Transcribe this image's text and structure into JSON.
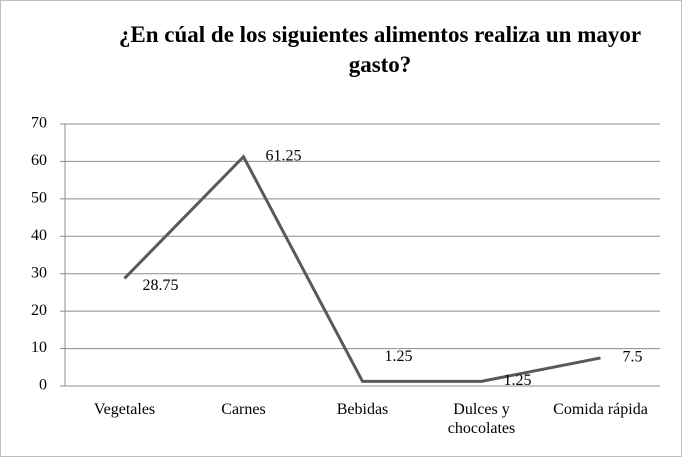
{
  "chart_data": {
    "type": "line",
    "title": "¿En cúal de los siguientes alimentos realiza un mayor gasto?",
    "categories": [
      "Vegetales",
      "Carnes",
      "Bebidas",
      "Dulces y chocolates",
      "Comida rápida"
    ],
    "values": [
      28.75,
      61.25,
      1.25,
      1.25,
      7.5
    ],
    "color": "#595959",
    "ylim": [
      0,
      70
    ],
    "yticks": [
      0,
      10,
      20,
      30,
      40,
      50,
      60,
      70
    ],
    "grid": true
  }
}
